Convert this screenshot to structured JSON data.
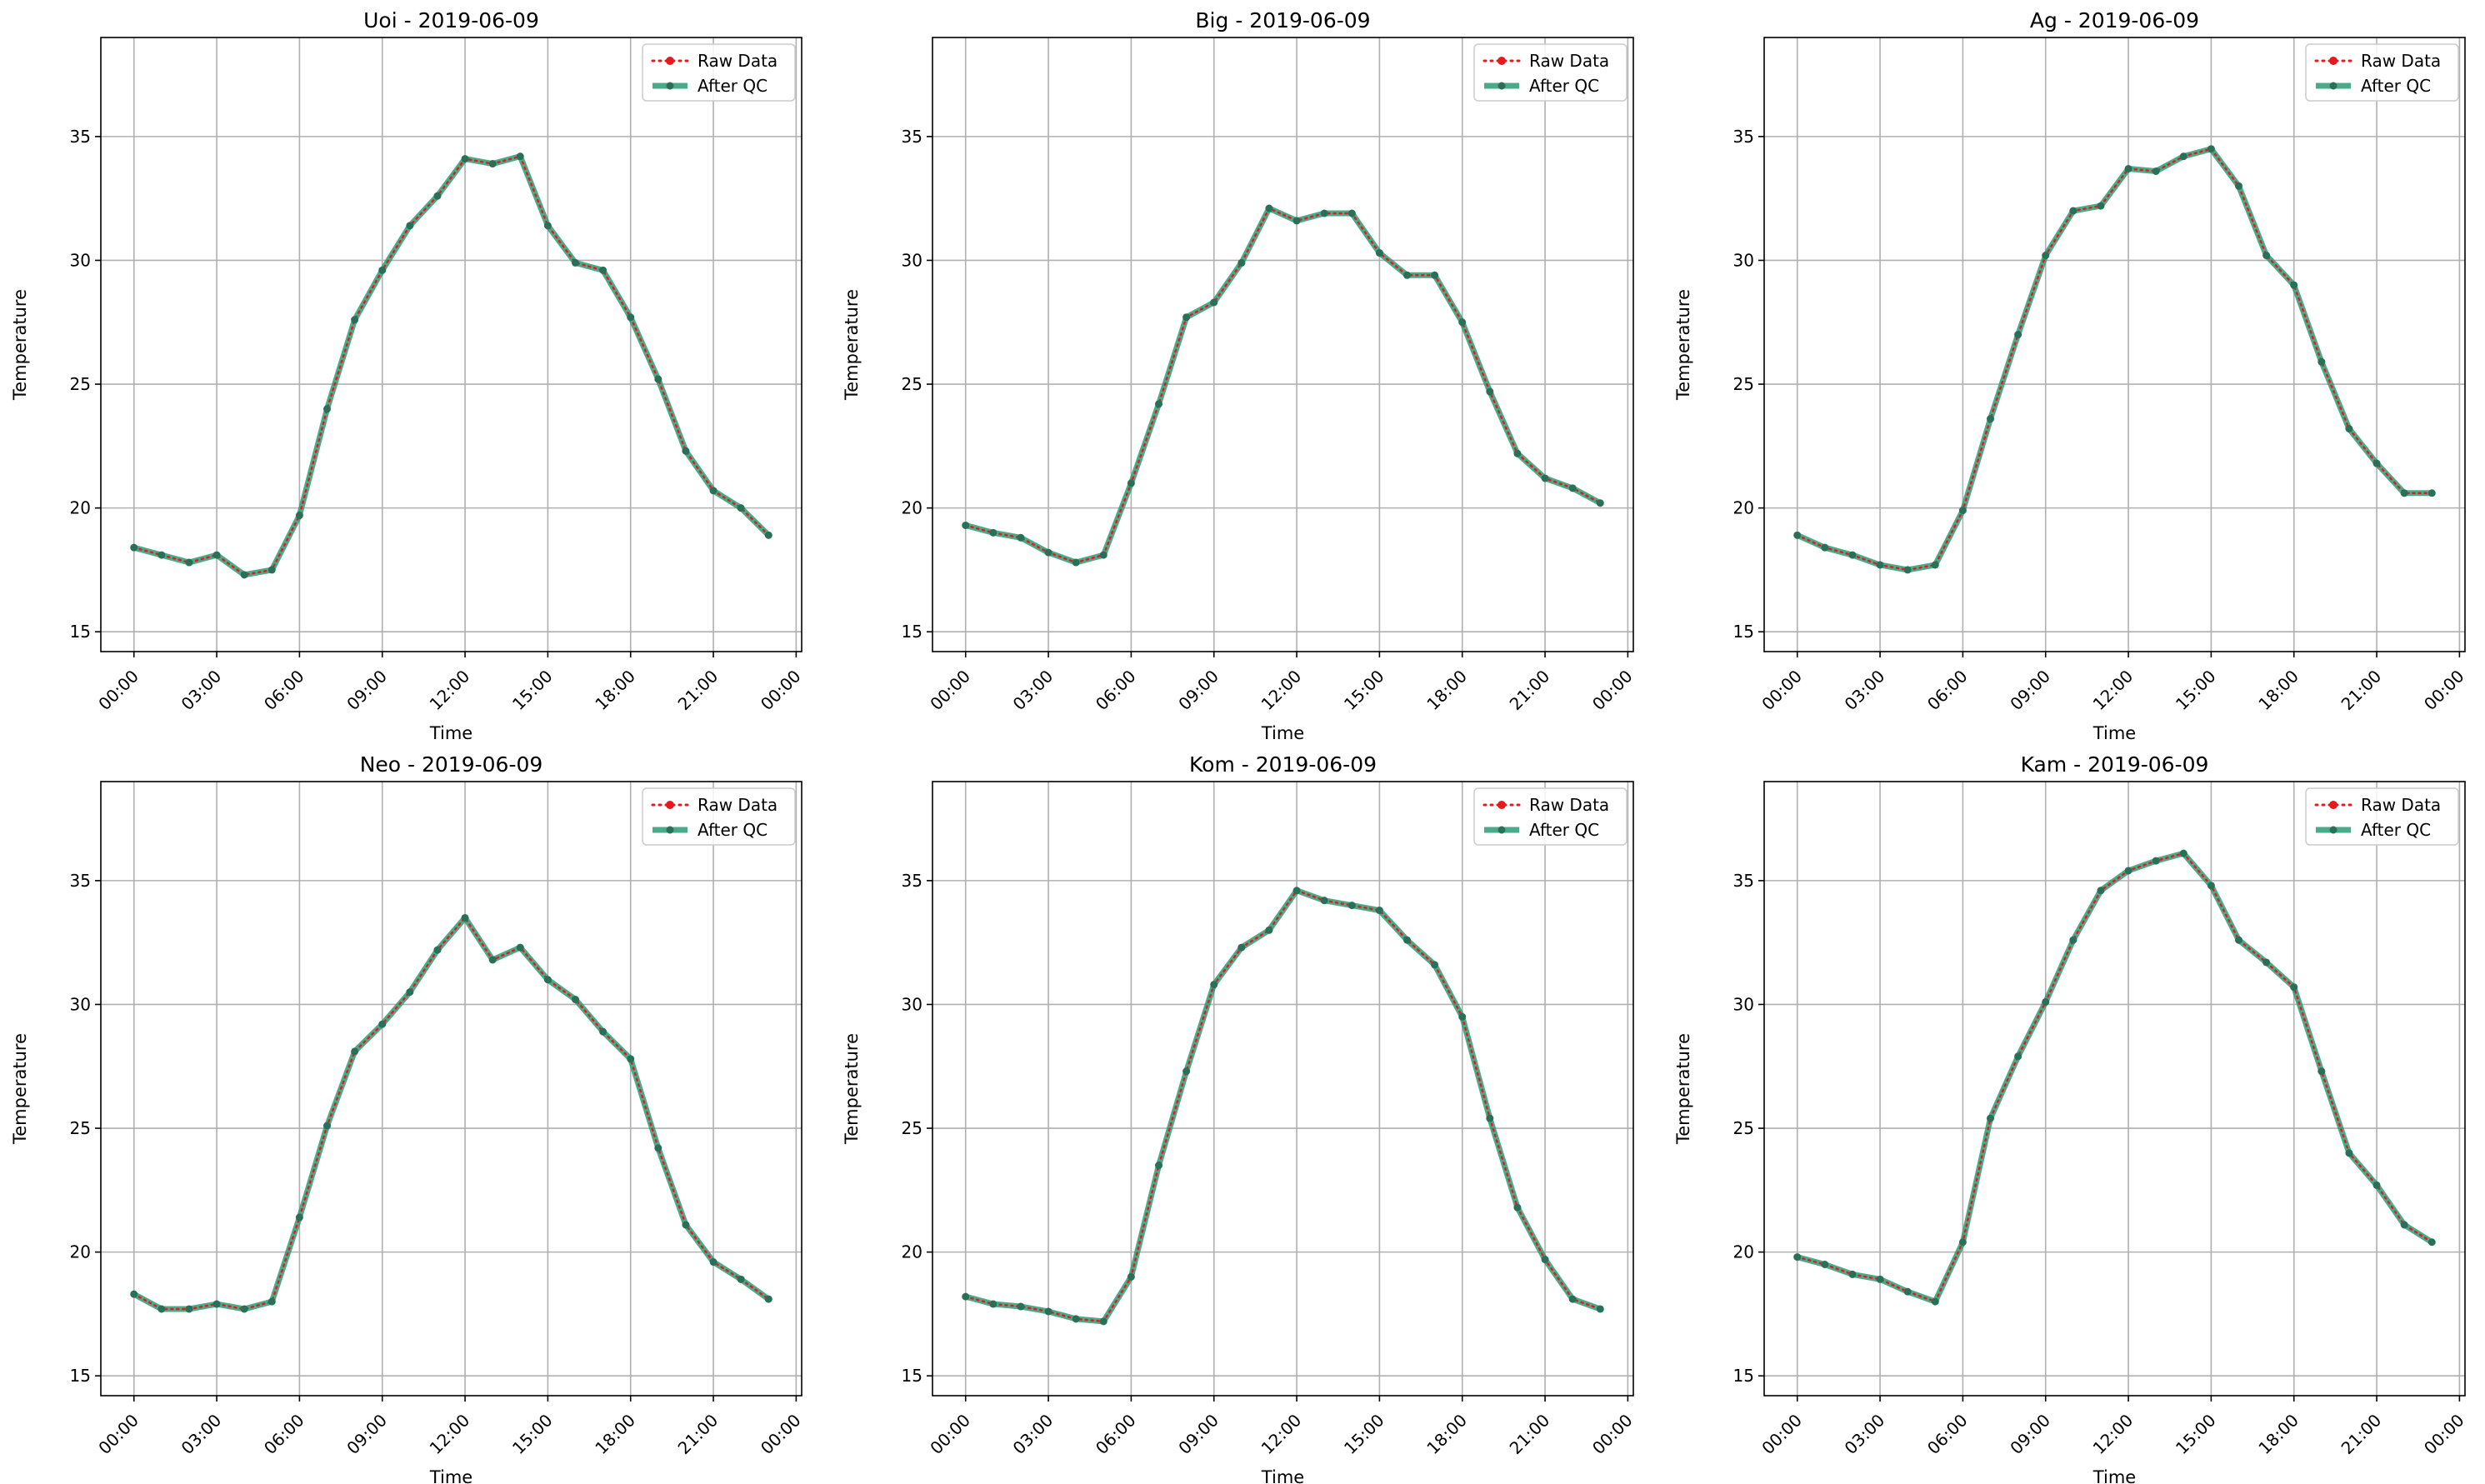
{
  "colors": {
    "raw": "#e8191c",
    "qc": "#2a9c76",
    "marker": "#2a6f58"
  },
  "chart_data": [
    {
      "type": "line",
      "title": "Uoi - 2019-06-09",
      "xlabel": "Time",
      "ylabel": "Temperature",
      "xticks": [
        "00:00",
        "03:00",
        "06:00",
        "09:00",
        "12:00",
        "15:00",
        "18:00",
        "21:00",
        "00:00"
      ],
      "yticks": [
        "15",
        "20",
        "25",
        "30",
        "35"
      ],
      "xlim_hours": [
        -1.2,
        24.2
      ],
      "ylim": [
        14.2,
        39.0
      ],
      "grid": true,
      "legend": "top-right",
      "x_hours": [
        0,
        1,
        2,
        3,
        4,
        5,
        6,
        7,
        8,
        9,
        10,
        11,
        12,
        13,
        14,
        15,
        16,
        17,
        18,
        19,
        20,
        21,
        22,
        23
      ],
      "series": [
        {
          "name": "Raw Data",
          "values": [
            18.4,
            18.1,
            17.8,
            18.1,
            17.3,
            17.5,
            19.7,
            24.0,
            27.6,
            29.6,
            31.4,
            32.6,
            34.1,
            33.9,
            34.2,
            31.4,
            29.9,
            29.6,
            27.7,
            25.2,
            22.3,
            20.7,
            20.0,
            18.9
          ]
        },
        {
          "name": "After QC",
          "values": [
            18.4,
            18.1,
            17.8,
            18.1,
            17.3,
            17.5,
            19.7,
            24.0,
            27.6,
            29.6,
            31.4,
            32.6,
            34.1,
            33.9,
            34.2,
            31.4,
            29.9,
            29.6,
            27.7,
            25.2,
            22.3,
            20.7,
            20.0,
            18.9
          ]
        }
      ]
    },
    {
      "type": "line",
      "title": "Big - 2019-06-09",
      "xlabel": "Time",
      "ylabel": "Temperature",
      "xticks": [
        "00:00",
        "03:00",
        "06:00",
        "09:00",
        "12:00",
        "15:00",
        "18:00",
        "21:00",
        "00:00"
      ],
      "yticks": [
        "15",
        "20",
        "25",
        "30",
        "35"
      ],
      "xlim_hours": [
        -1.2,
        24.2
      ],
      "ylim": [
        14.2,
        39.0
      ],
      "grid": true,
      "legend": "top-right",
      "x_hours": [
        0,
        1,
        2,
        3,
        4,
        5,
        6,
        7,
        8,
        9,
        10,
        11,
        12,
        13,
        14,
        15,
        16,
        17,
        18,
        19,
        20,
        21,
        22,
        23
      ],
      "series": [
        {
          "name": "Raw Data",
          "values": [
            19.3,
            19.0,
            18.8,
            18.2,
            17.8,
            18.1,
            21.0,
            24.2,
            27.7,
            28.3,
            29.9,
            32.1,
            31.6,
            31.9,
            31.9,
            30.3,
            29.4,
            29.4,
            27.5,
            24.7,
            22.2,
            21.2,
            20.8,
            20.2
          ]
        },
        {
          "name": "After QC",
          "values": [
            19.3,
            19.0,
            18.8,
            18.2,
            17.8,
            18.1,
            21.0,
            24.2,
            27.7,
            28.3,
            29.9,
            32.1,
            31.6,
            31.9,
            31.9,
            30.3,
            29.4,
            29.4,
            27.5,
            24.7,
            22.2,
            21.2,
            20.8,
            20.2
          ]
        }
      ]
    },
    {
      "type": "line",
      "title": "Ag - 2019-06-09",
      "xlabel": "Time",
      "ylabel": "Temperature",
      "xticks": [
        "00:00",
        "03:00",
        "06:00",
        "09:00",
        "12:00",
        "15:00",
        "18:00",
        "21:00",
        "00:00"
      ],
      "yticks": [
        "15",
        "20",
        "25",
        "30",
        "35"
      ],
      "xlim_hours": [
        -1.2,
        24.2
      ],
      "ylim": [
        14.2,
        39.0
      ],
      "grid": true,
      "legend": "top-right",
      "x_hours": [
        0,
        1,
        2,
        3,
        4,
        5,
        6,
        7,
        8,
        9,
        10,
        11,
        12,
        13,
        14,
        15,
        16,
        17,
        18,
        19,
        20,
        21,
        22,
        23
      ],
      "series": [
        {
          "name": "Raw Data",
          "values": [
            18.9,
            18.4,
            18.1,
            17.7,
            17.5,
            17.7,
            19.9,
            23.6,
            27.0,
            30.2,
            32.0,
            32.2,
            33.7,
            33.6,
            34.2,
            34.5,
            33.0,
            30.2,
            29.0,
            25.9,
            23.2,
            21.8,
            20.6,
            20.6
          ]
        },
        {
          "name": "After QC",
          "values": [
            18.9,
            18.4,
            18.1,
            17.7,
            17.5,
            17.7,
            19.9,
            23.6,
            27.0,
            30.2,
            32.0,
            32.2,
            33.7,
            33.6,
            34.2,
            34.5,
            33.0,
            30.2,
            29.0,
            25.9,
            23.2,
            21.8,
            20.6,
            20.6
          ]
        }
      ]
    },
    {
      "type": "line",
      "title": "Neo - 2019-06-09",
      "xlabel": "Time",
      "ylabel": "Temperature",
      "xticks": [
        "00:00",
        "03:00",
        "06:00",
        "09:00",
        "12:00",
        "15:00",
        "18:00",
        "21:00",
        "00:00"
      ],
      "yticks": [
        "15",
        "20",
        "25",
        "30",
        "35"
      ],
      "xlim_hours": [
        -1.2,
        24.2
      ],
      "ylim": [
        14.2,
        39.0
      ],
      "grid": true,
      "legend": "top-right",
      "x_hours": [
        0,
        1,
        2,
        3,
        4,
        5,
        6,
        7,
        8,
        9,
        10,
        11,
        12,
        13,
        14,
        15,
        16,
        17,
        18,
        19,
        20,
        21,
        22,
        23
      ],
      "series": [
        {
          "name": "Raw Data",
          "values": [
            18.3,
            17.7,
            17.7,
            17.9,
            17.7,
            18.0,
            21.4,
            25.1,
            28.1,
            29.2,
            30.5,
            32.2,
            33.5,
            31.8,
            32.3,
            31.0,
            30.2,
            28.9,
            27.8,
            24.2,
            21.1,
            19.6,
            18.9,
            18.1
          ]
        },
        {
          "name": "After QC",
          "values": [
            18.3,
            17.7,
            17.7,
            17.9,
            17.7,
            18.0,
            21.4,
            25.1,
            28.1,
            29.2,
            30.5,
            32.2,
            33.5,
            31.8,
            32.3,
            31.0,
            30.2,
            28.9,
            27.8,
            24.2,
            21.1,
            19.6,
            18.9,
            18.1
          ]
        }
      ]
    },
    {
      "type": "line",
      "title": "Kom - 2019-06-09",
      "xlabel": "Time",
      "ylabel": "Temperature",
      "xticks": [
        "00:00",
        "03:00",
        "06:00",
        "09:00",
        "12:00",
        "15:00",
        "18:00",
        "21:00",
        "00:00"
      ],
      "yticks": [
        "15",
        "20",
        "25",
        "30",
        "35"
      ],
      "xlim_hours": [
        -1.2,
        24.2
      ],
      "ylim": [
        14.2,
        39.0
      ],
      "grid": true,
      "legend": "top-right",
      "x_hours": [
        0,
        1,
        2,
        3,
        4,
        5,
        6,
        7,
        8,
        9,
        10,
        11,
        12,
        13,
        14,
        15,
        16,
        17,
        18,
        19,
        20,
        21,
        22,
        23
      ],
      "series": [
        {
          "name": "Raw Data",
          "values": [
            18.2,
            17.9,
            17.8,
            17.6,
            17.3,
            17.2,
            19.0,
            23.5,
            27.3,
            30.8,
            32.3,
            33.0,
            34.6,
            34.2,
            34.0,
            33.8,
            32.6,
            31.6,
            29.5,
            25.4,
            21.8,
            19.7,
            18.1,
            17.7
          ]
        },
        {
          "name": "After QC",
          "values": [
            18.2,
            17.9,
            17.8,
            17.6,
            17.3,
            17.2,
            19.0,
            23.5,
            27.3,
            30.8,
            32.3,
            33.0,
            34.6,
            34.2,
            34.0,
            33.8,
            32.6,
            31.6,
            29.5,
            25.4,
            21.8,
            19.7,
            18.1,
            17.7
          ]
        }
      ]
    },
    {
      "type": "line",
      "title": "Kam - 2019-06-09",
      "xlabel": "Time",
      "ylabel": "Temperature",
      "xticks": [
        "00:00",
        "03:00",
        "06:00",
        "09:00",
        "12:00",
        "15:00",
        "18:00",
        "21:00",
        "00:00"
      ],
      "yticks": [
        "15",
        "20",
        "25",
        "30",
        "35"
      ],
      "xlim_hours": [
        -1.2,
        24.2
      ],
      "ylim": [
        14.2,
        39.0
      ],
      "grid": true,
      "legend": "top-right",
      "x_hours": [
        0,
        1,
        2,
        3,
        4,
        5,
        6,
        7,
        8,
        9,
        10,
        11,
        12,
        13,
        14,
        15,
        16,
        17,
        18,
        19,
        20,
        21,
        22,
        23
      ],
      "series": [
        {
          "name": "Raw Data",
          "values": [
            19.8,
            19.5,
            19.1,
            18.9,
            18.4,
            18.0,
            20.4,
            25.4,
            27.9,
            30.1,
            32.6,
            34.6,
            35.4,
            35.8,
            36.1,
            34.8,
            32.6,
            31.7,
            30.7,
            27.3,
            24.0,
            22.7,
            21.1,
            20.4
          ]
        },
        {
          "name": "After QC",
          "values": [
            19.8,
            19.5,
            19.1,
            18.9,
            18.4,
            18.0,
            20.4,
            25.4,
            27.9,
            30.1,
            32.6,
            34.6,
            35.4,
            35.8,
            36.1,
            34.8,
            32.6,
            31.7,
            30.7,
            27.3,
            24.0,
            22.7,
            21.1,
            20.4
          ]
        }
      ]
    }
  ]
}
